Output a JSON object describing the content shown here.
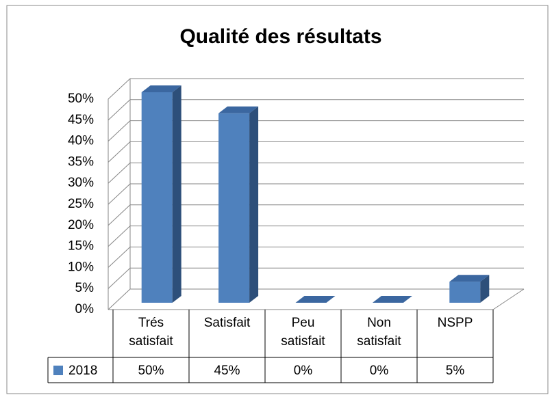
{
  "chart_data": {
    "type": "bar3d",
    "title": "Qualité des résultats",
    "categories": [
      "Trés satisfait",
      "Satisfait",
      "Peu satisfait",
      "Non satisfait",
      "NSPP"
    ],
    "series": [
      {
        "name": "2018",
        "color": "#4f81bd",
        "values": [
          50,
          45,
          0,
          0,
          5
        ],
        "value_labels": [
          "50%",
          "45%",
          "0%",
          "0%",
          "5%"
        ]
      }
    ],
    "ylim": [
      0,
      50
    ],
    "yticks": [
      {
        "value": 0,
        "label": "0%"
      },
      {
        "value": 5,
        "label": "5%"
      },
      {
        "value": 10,
        "label": "10%"
      },
      {
        "value": 15,
        "label": "15%"
      },
      {
        "value": 20,
        "label": "20%"
      },
      {
        "value": 25,
        "label": "25%"
      },
      {
        "value": 30,
        "label": "30%"
      },
      {
        "value": 35,
        "label": "35%"
      },
      {
        "value": 40,
        "label": "40%"
      },
      {
        "value": 45,
        "label": "45%"
      },
      {
        "value": 50,
        "label": "50%"
      }
    ],
    "grid": true,
    "data_table": true
  }
}
